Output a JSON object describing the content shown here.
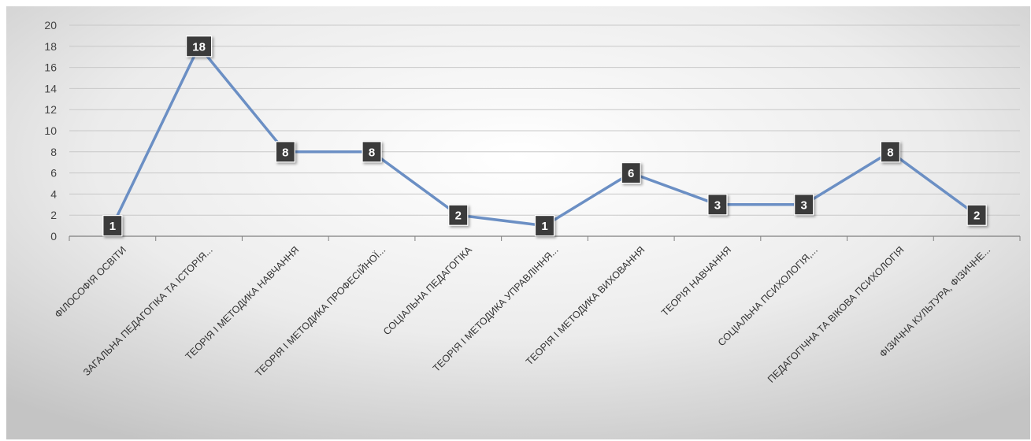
{
  "chart_data": {
    "type": "line",
    "title": "",
    "xlabel": "",
    "ylabel": "",
    "ylim": [
      0,
      20
    ],
    "y_ticks": [
      0,
      2,
      4,
      6,
      8,
      10,
      12,
      14,
      16,
      18,
      20
    ],
    "grid": true,
    "legend": "none",
    "categories": [
      "ФІЛОСОФІЯ ОСВІТИ",
      "ЗАГАЛЬНА ПЕДАГОГІКА ТА ІСТОРІЯ...",
      "ТЕОРІЯ І МЕТОДИКА НАВЧАННЯ",
      "ТЕОРІЯ І МЕТОДИКА ПРОФЕСІЙНОЇ...",
      "СОЦІАЛЬНА ПЕДАГОГІКА",
      "ТЕОРІЯ І МЕТОДИКА УПРАВЛІННЯ...",
      "ТЕОРІЯ І МЕТОДИКА ВИХОВАННЯ",
      "ТЕОРІЯ НАВЧАННЯ",
      "СОЦІАЛЬНА ПСИХОЛОГІЯ,...",
      "ПЕДАГОГІЧНА ТА ВІКОВА ПСИХОЛОГІЯ",
      "ФІЗИЧНА КУЛЬТУРА, ФІЗИЧНЕ..."
    ],
    "series": [
      {
        "values": [
          1,
          18,
          8,
          8,
          2,
          1,
          6,
          3,
          3,
          8,
          2
        ],
        "data_labels": [
          "1",
          "18",
          "8",
          "8",
          "2",
          "1",
          "6",
          "3",
          "3",
          "8",
          "2"
        ]
      }
    ],
    "colors": {
      "line": "#6b8fc4",
      "label_bg": "#3a3a3a",
      "label_text": "#ffffff",
      "grid": "#c8c8c8",
      "axis": "#7f7f7f",
      "background_light": "#ffffff",
      "background_dark": "#c4c4c4"
    }
  }
}
